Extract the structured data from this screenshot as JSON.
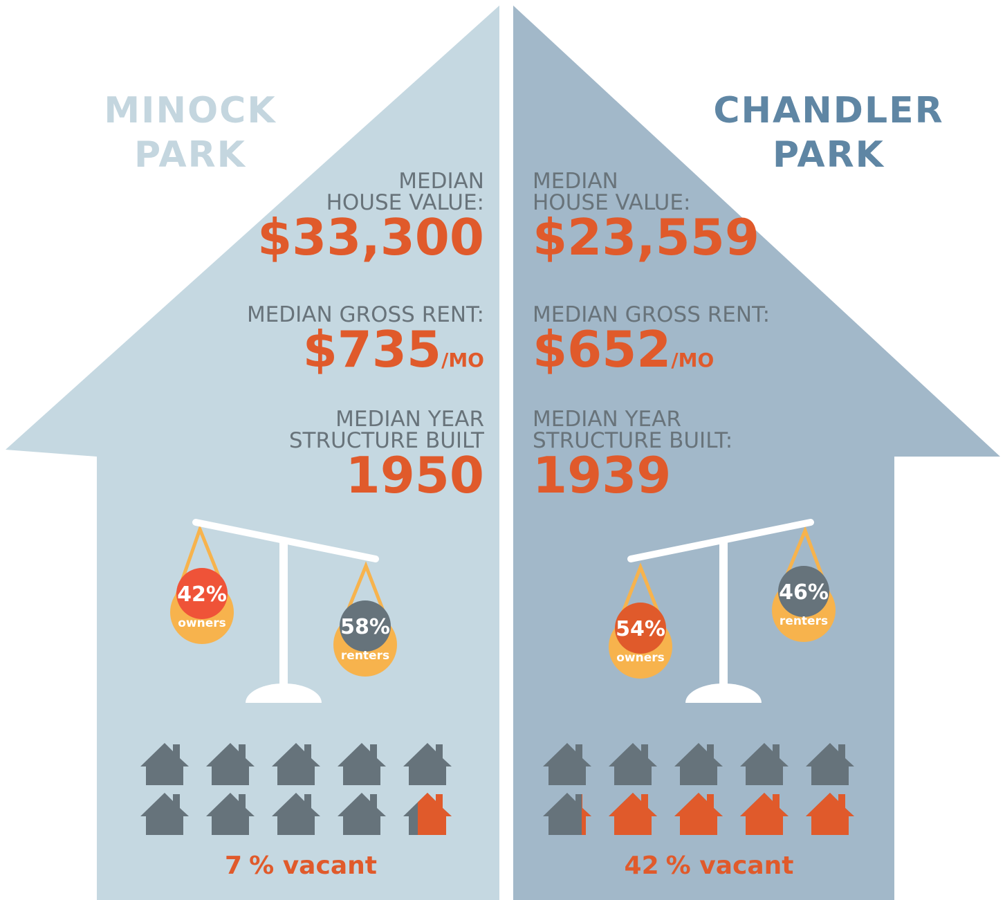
{
  "left": {
    "title_lines": [
      "MINOCK",
      "PARK"
    ],
    "house_value": {
      "label_lines": [
        "MEDIAN",
        "HOUSE VALUE:"
      ],
      "value": "$33,300"
    },
    "rent": {
      "label": "MEDIAN GROSS RENT:",
      "value": "$735",
      "unit": "/MO"
    },
    "year": {
      "label_lines": [
        "MEDIAN YEAR",
        "STRUCTURE BUILT"
      ],
      "value": "1950"
    },
    "owners": {
      "value": "42%",
      "label": "owners"
    },
    "renters": {
      "value": "58%",
      "label": "renters"
    },
    "vacancy": {
      "value": 7,
      "text": "% vacant"
    }
  },
  "right": {
    "title_lines": [
      "CHANDLER",
      "PARK"
    ],
    "house_value": {
      "label_lines": [
        "MEDIAN",
        "HOUSE VALUE:"
      ],
      "value": "$23,559"
    },
    "rent": {
      "label": "MEDIAN GROSS RENT:",
      "value": "$652",
      "unit": "/MO"
    },
    "year": {
      "label_lines": [
        "MEDIAN YEAR",
        "STRUCTURE BUILT:"
      ],
      "value": "1939"
    },
    "owners": {
      "value": "54%",
      "label": "owners"
    },
    "renters": {
      "value": "46%",
      "label": "renters"
    },
    "vacancy": {
      "value": 42,
      "text": "% vacant"
    }
  }
}
